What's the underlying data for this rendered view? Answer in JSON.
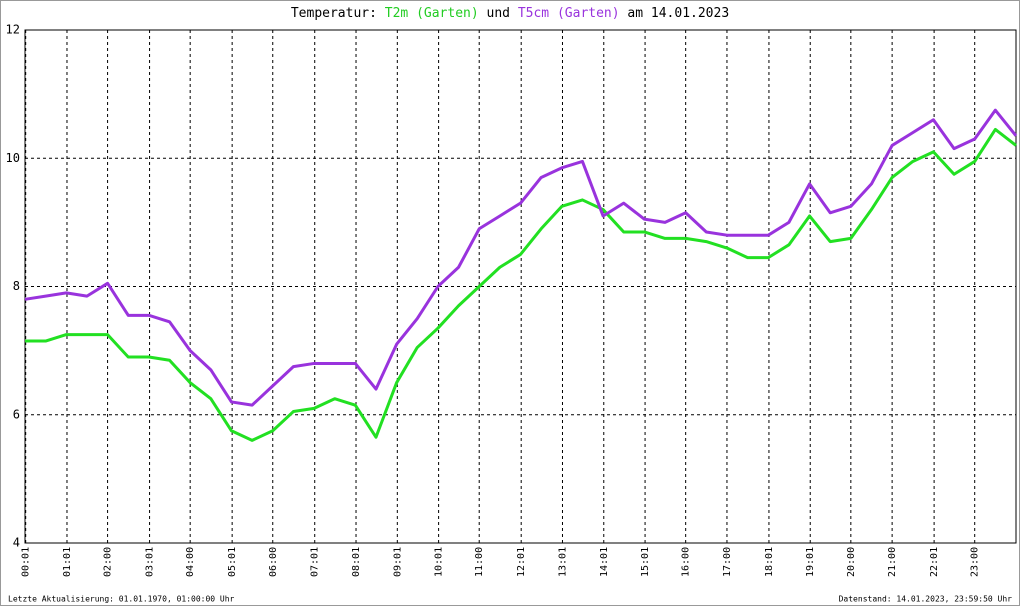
{
  "chart_data": {
    "type": "line",
    "title": {
      "prefix": "Temperatur:",
      "joiner": "und",
      "suffix": "am 14.01.2023"
    },
    "footer": {
      "left": "Letzte Aktualisierung: 01.01.1970, 01:00:00 Uhr",
      "right": "Datenstand: 14.01.2023, 23:59:50 Uhr"
    },
    "x": [
      0,
      0.5,
      1,
      1.5,
      2,
      2.5,
      3,
      3.5,
      4,
      4.5,
      5,
      5.5,
      6,
      6.5,
      7,
      7.5,
      8,
      8.5,
      9,
      9.5,
      10,
      10.5,
      11,
      11.5,
      12,
      12.5,
      13,
      13.5,
      14,
      14.5,
      15,
      15.5,
      16,
      16.5,
      17,
      17.5,
      18,
      18.5,
      19,
      19.5,
      20,
      20.5,
      21,
      21.5,
      22,
      22.5,
      23,
      23.5,
      24
    ],
    "series": [
      {
        "name": "T2m (Garten)",
        "color": "#22e022",
        "values": [
          7.15,
          7.15,
          7.25,
          7.25,
          7.25,
          6.9,
          6.9,
          6.85,
          6.5,
          6.25,
          5.75,
          5.6,
          5.75,
          6.05,
          6.1,
          6.25,
          6.15,
          5.65,
          6.5,
          7.05,
          7.35,
          7.7,
          8.0,
          8.3,
          8.5,
          8.9,
          9.25,
          9.35,
          9.2,
          8.85,
          8.85,
          8.75,
          8.75,
          8.7,
          8.6,
          8.45,
          8.45,
          8.65,
          9.1,
          8.7,
          8.75,
          9.2,
          9.7,
          9.95,
          10.1,
          9.75,
          9.95,
          10.45,
          10.2
        ]
      },
      {
        "name": "T5cm (Garten)",
        "color": "#9933dd",
        "values": [
          7.8,
          7.85,
          7.9,
          7.85,
          8.05,
          7.55,
          7.55,
          7.45,
          7.0,
          6.7,
          6.2,
          6.15,
          6.45,
          6.75,
          6.8,
          6.8,
          6.8,
          6.4,
          7.1,
          7.5,
          8.0,
          8.3,
          8.9,
          9.1,
          9.3,
          9.7,
          9.85,
          9.95,
          9.1,
          9.3,
          9.05,
          9.0,
          9.15,
          8.85,
          8.8,
          8.8,
          8.8,
          9.0,
          9.6,
          9.15,
          9.25,
          9.6,
          10.2,
          10.4,
          10.6,
          10.15,
          10.3,
          10.75,
          10.35
        ]
      }
    ],
    "xlim": [
      0,
      24
    ],
    "xticks": [
      {
        "value": 0.0167,
        "label": "00:01"
      },
      {
        "value": 1.0167,
        "label": "01:01"
      },
      {
        "value": 2,
        "label": "02:00"
      },
      {
        "value": 3.0167,
        "label": "03:01"
      },
      {
        "value": 4,
        "label": "04:00"
      },
      {
        "value": 5.0167,
        "label": "05:01"
      },
      {
        "value": 6,
        "label": "06:00"
      },
      {
        "value": 7.0167,
        "label": "07:01"
      },
      {
        "value": 8.0167,
        "label": "08:01"
      },
      {
        "value": 9.0167,
        "label": "09:01"
      },
      {
        "value": 10.0167,
        "label": "10:01"
      },
      {
        "value": 11,
        "label": "11:00"
      },
      {
        "value": 12.0167,
        "label": "12:01"
      },
      {
        "value": 13.0167,
        "label": "13:01"
      },
      {
        "value": 14.0167,
        "label": "14:01"
      },
      {
        "value": 15.0167,
        "label": "15:01"
      },
      {
        "value": 16,
        "label": "16:00"
      },
      {
        "value": 17,
        "label": "17:00"
      },
      {
        "value": 18.0167,
        "label": "18:01"
      },
      {
        "value": 19.0167,
        "label": "19:01"
      },
      {
        "value": 20,
        "label": "20:00"
      },
      {
        "value": 21,
        "label": "21:00"
      },
      {
        "value": 22.0167,
        "label": "22:01"
      },
      {
        "value": 23,
        "label": "23:00"
      }
    ],
    "ylim": [
      4,
      12
    ],
    "yticks": [
      4,
      6,
      8,
      10,
      12
    ],
    "grid": true
  }
}
